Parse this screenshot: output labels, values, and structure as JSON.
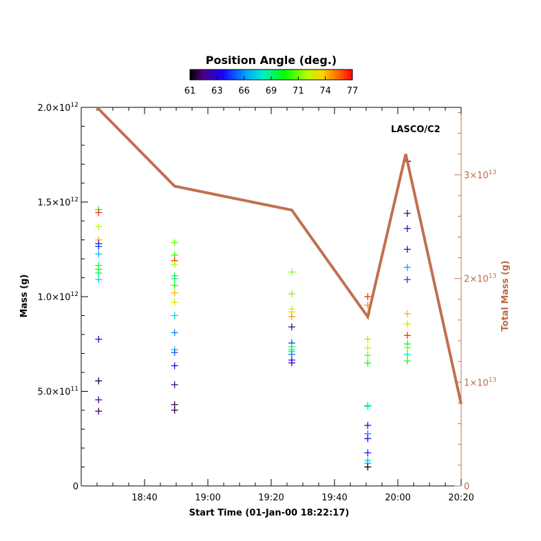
{
  "chart_data": {
    "type": "scatter",
    "annotation": "LASCO/C2",
    "colorbar": {
      "title": "Position Angle (deg.)",
      "ticks": [
        "61",
        "63",
        "66",
        "69",
        "71",
        "74",
        "77"
      ],
      "range": [
        61,
        77
      ]
    },
    "xlabel": "Start Time (01-Jan-00 18:22:17)",
    "x_ticks": [
      "18:40",
      "19:00",
      "19:20",
      "19:40",
      "20:00",
      "20:20"
    ],
    "x_tick_minutes": [
      1120,
      1140,
      1160,
      1180,
      1200,
      1220
    ],
    "xlim_minutes": [
      1100,
      1220
    ],
    "ylabel": "Mass (g)",
    "y_ticks": [
      {
        "value": 0,
        "base": "0",
        "exp": ""
      },
      {
        "value": 500000000000.0,
        "base": "5.0×10",
        "exp": "11"
      },
      {
        "value": 1000000000000.0,
        "base": "1.0×10",
        "exp": "12"
      },
      {
        "value": 1500000000000.0,
        "base": "1.5×10",
        "exp": "12"
      },
      {
        "value": 2000000000000.0,
        "base": "2.0×10",
        "exp": "12"
      }
    ],
    "ylim": [
      0,
      2000000000000.0
    ],
    "y2label": "Total Mass (g)",
    "y2_ticks": [
      {
        "value": 0,
        "base": "0",
        "exp": ""
      },
      {
        "value": 10000000000000.0,
        "base": "1×10",
        "exp": "13"
      },
      {
        "value": 20000000000000.0,
        "base": "2×10",
        "exp": "13"
      },
      {
        "value": 30000000000000.0,
        "base": "3×10",
        "exp": "13"
      }
    ],
    "y2lim": [
      0,
      36500000000000.0
    ],
    "line_color": "#c0704e",
    "total_mass_line": {
      "x_minutes": [
        1105,
        1129.5,
        1166.5,
        1190.5,
        1202.5,
        1220
      ],
      "y": [
        36500000000000.0,
        28900000000000.0,
        26600000000000.0,
        16300000000000.0,
        32000000000000.0,
        7900000000000.0
      ]
    },
    "scatter_groups": [
      {
        "x_minutes": 1105.5,
        "points": [
          {
            "y": 1460000000000.0,
            "pa": 70.5
          },
          {
            "y": 1445000000000.0,
            "pa": 76.5
          },
          {
            "y": 1370000000000.0,
            "pa": 73.0
          },
          {
            "y": 1300000000000.0,
            "pa": 74.5
          },
          {
            "y": 1280000000000.0,
            "pa": 63.5
          },
          {
            "y": 1265000000000.0,
            "pa": 65.0
          },
          {
            "y": 1225000000000.0,
            "pa": 67.0
          },
          {
            "y": 1165000000000.0,
            "pa": 69.5
          },
          {
            "y": 1145000000000.0,
            "pa": 70.5
          },
          {
            "y": 1125000000000.0,
            "pa": 69.5
          },
          {
            "y": 1090000000000.0,
            "pa": 67.5
          },
          {
            "y": 775000000000.0,
            "pa": 63.0
          },
          {
            "y": 555000000000.0,
            "pa": 61.5
          },
          {
            "y": 455000000000.0,
            "pa": 62.5
          },
          {
            "y": 395000000000.0,
            "pa": 62.0
          }
        ]
      },
      {
        "x_minutes": 1129.5,
        "points": [
          {
            "y": 1285000000000.0,
            "pa": 71.5
          },
          {
            "y": 1220000000000.0,
            "pa": 70.5
          },
          {
            "y": 1190000000000.0,
            "pa": 76.5
          },
          {
            "y": 1170000000000.0,
            "pa": 72.5
          },
          {
            "y": 1110000000000.0,
            "pa": 70.0
          },
          {
            "y": 1095000000000.0,
            "pa": 69.0
          },
          {
            "y": 1060000000000.0,
            "pa": 70.5
          },
          {
            "y": 1020000000000.0,
            "pa": 74.5
          },
          {
            "y": 970000000000.0,
            "pa": 73.5
          },
          {
            "y": 900000000000.0,
            "pa": 67.5
          },
          {
            "y": 810000000000.0,
            "pa": 66.0
          },
          {
            "y": 720000000000.0,
            "pa": 67.0
          },
          {
            "y": 705000000000.0,
            "pa": 65.5
          },
          {
            "y": 635000000000.0,
            "pa": 63.5
          },
          {
            "y": 535000000000.0,
            "pa": 62.5
          },
          {
            "y": 430000000000.0,
            "pa": 62.0
          },
          {
            "y": 400000000000.0,
            "pa": 61.5
          }
        ]
      },
      {
        "x_minutes": 1166.5,
        "points": [
          {
            "y": 1130000000000.0,
            "pa": 72.0
          },
          {
            "y": 1015000000000.0,
            "pa": 74.0
          },
          {
            "y": 1015000000000.0,
            "pa": 72.0
          },
          {
            "y": 935000000000.0,
            "pa": 73.0
          },
          {
            "y": 920000000000.0,
            "pa": 73.5
          },
          {
            "y": 895000000000.0,
            "pa": 75.0
          },
          {
            "y": 840000000000.0,
            "pa": 62.5
          },
          {
            "y": 755000000000.0,
            "pa": 65.0
          },
          {
            "y": 735000000000.0,
            "pa": 69.5
          },
          {
            "y": 720000000000.0,
            "pa": 68.5
          },
          {
            "y": 710000000000.0,
            "pa": 70.5
          },
          {
            "y": 695000000000.0,
            "pa": 66.0
          },
          {
            "y": 665000000000.0,
            "pa": 64.5
          },
          {
            "y": 650000000000.0,
            "pa": 63.0
          }
        ]
      },
      {
        "x_minutes": 1190.5,
        "points": [
          {
            "y": 1000000000000.0,
            "pa": 76.5
          },
          {
            "y": 955000000000.0,
            "pa": 75.0
          },
          {
            "y": 910000000000.0,
            "pa": 74.0
          },
          {
            "y": 775000000000.0,
            "pa": 72.0
          },
          {
            "y": 730000000000.0,
            "pa": 73.0
          },
          {
            "y": 690000000000.0,
            "pa": 71.5
          },
          {
            "y": 650000000000.0,
            "pa": 70.0
          },
          {
            "y": 425000000000.0,
            "pa": 69.5
          },
          {
            "y": 420000000000.0,
            "pa": 68.5
          },
          {
            "y": 320000000000.0,
            "pa": 64.0
          },
          {
            "y": 275000000000.0,
            "pa": 66.0
          },
          {
            "y": 250000000000.0,
            "pa": 63.5
          },
          {
            "y": 175000000000.0,
            "pa": 64.5
          },
          {
            "y": 135000000000.0,
            "pa": 67.5
          },
          {
            "y": 120000000000.0,
            "pa": 66.5
          },
          {
            "y": 100000000000.0,
            "pa": 61.0
          }
        ]
      },
      {
        "x_minutes": 1203,
        "points": [
          {
            "y": 1715000000000.0,
            "pa": 61.0
          },
          {
            "y": 1440000000000.0,
            "pa": 62.5
          },
          {
            "y": 1360000000000.0,
            "pa": 63.0
          },
          {
            "y": 1250000000000.0,
            "pa": 64.0
          },
          {
            "y": 1155000000000.0,
            "pa": 66.5
          },
          {
            "y": 1090000000000.0,
            "pa": 65.0
          },
          {
            "y": 910000000000.0,
            "pa": 74.5
          },
          {
            "y": 855000000000.0,
            "pa": 72.5
          },
          {
            "y": 855000000000.0,
            "pa": 73.5
          },
          {
            "y": 795000000000.0,
            "pa": 76.5
          },
          {
            "y": 750000000000.0,
            "pa": 70.0
          },
          {
            "y": 730000000000.0,
            "pa": 71.5
          },
          {
            "y": 695000000000.0,
            "pa": 68.5
          },
          {
            "y": 660000000000.0,
            "pa": 70.5
          }
        ]
      }
    ]
  }
}
